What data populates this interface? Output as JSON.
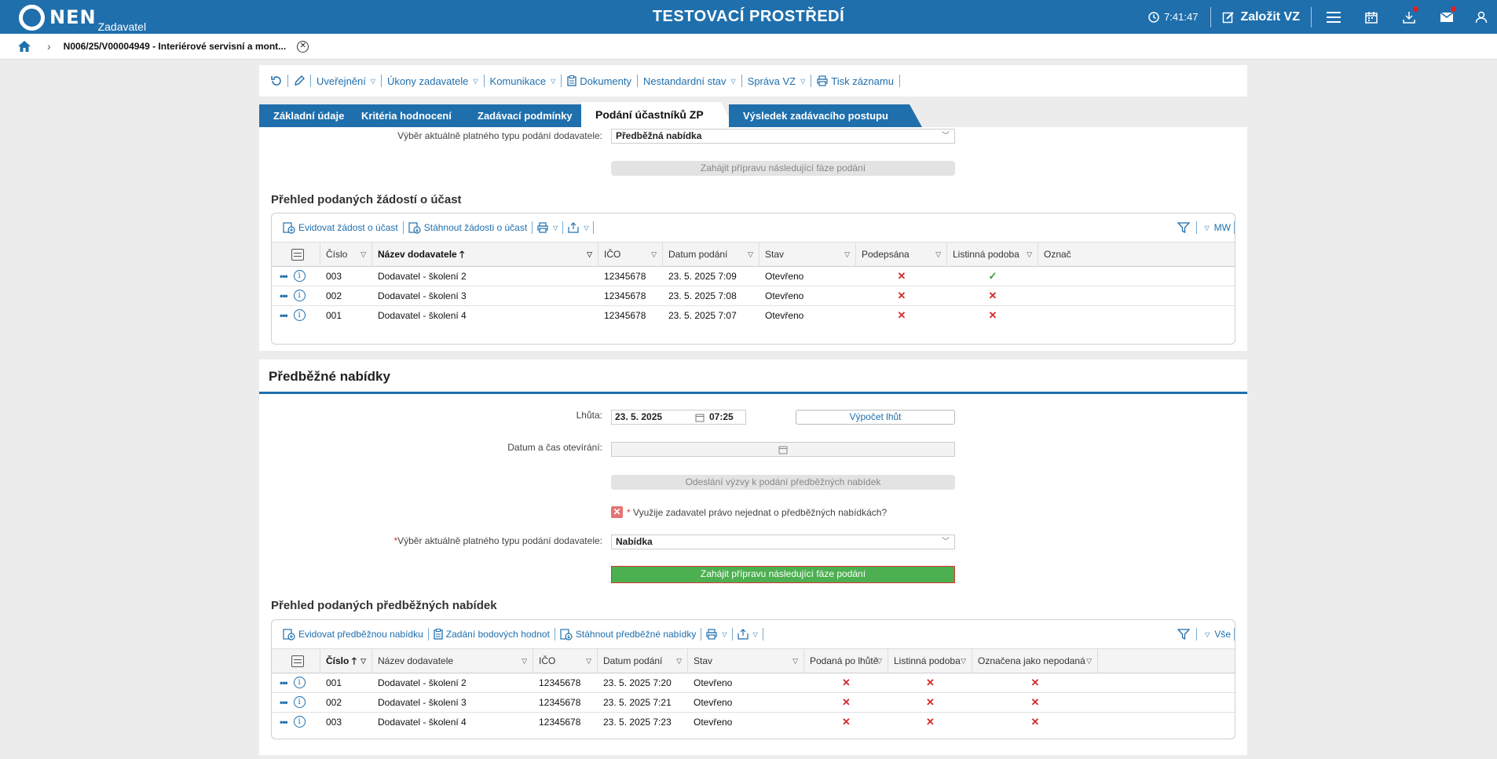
{
  "header": {
    "logo_text": "NEN",
    "logo_sub": "Zadavatel",
    "env_title": "TESTOVACÍ PROSTŘEDÍ",
    "time": "7:41:47",
    "create_label": "Založit VZ"
  },
  "breadcrumb": {
    "item": "N006/25/V00004949 - Interiérové servisní a mont..."
  },
  "toolbar": {
    "publish": "Uveřejnění",
    "actions": "Úkony zadavatele",
    "communication": "Komunikace",
    "documents": "Dokumenty",
    "nonstandard": "Nestandardní stav",
    "admin": "Správa VZ",
    "print": "Tisk záznamu"
  },
  "tabs": [
    {
      "label": "Základní údaje"
    },
    {
      "label": "Kritéria hodnocení"
    },
    {
      "label": "Zadávací podmínky"
    },
    {
      "label": "Podání účastníků ZP"
    },
    {
      "label": "Výsledek zadávacího postupu"
    }
  ],
  "top_section": {
    "type_label": "Výběr aktuálně platného typu podání dodavatele:",
    "type_value": "Předběžná nabídka",
    "start_next_button": "Zahájit přípravu následující fáze podání",
    "grid_title": "Přehled podaných žádostí o účast",
    "grid_actions": {
      "register": "Evidovat žádost o účast",
      "download": "Stáhnout žádosti o účast",
      "right_label": "MW"
    },
    "columns": [
      "Číslo",
      "Název dodavatele",
      "IČO",
      "Datum podání",
      "Stav",
      "Podepsána",
      "Listinná podoba",
      "Označ"
    ],
    "rows": [
      {
        "cislo": "003",
        "nazev": "Dodavatel - školení 2",
        "ico": "12345678",
        "datum": "23. 5. 2025 7:09",
        "stav": "Otevřeno",
        "podepsana": "✕",
        "listinna": "✓"
      },
      {
        "cislo": "002",
        "nazev": "Dodavatel - školení 3",
        "ico": "12345678",
        "datum": "23. 5. 2025 7:08",
        "stav": "Otevřeno",
        "podepsana": "✕",
        "listinna": "✕"
      },
      {
        "cislo": "001",
        "nazev": "Dodavatel - školení 4",
        "ico": "12345678",
        "datum": "23. 5. 2025 7:07",
        "stav": "Otevřeno",
        "podepsana": "✕",
        "listinna": "✕"
      }
    ]
  },
  "prelim_section": {
    "title": "Předběžné nabídky",
    "deadline_label": "Lhůta:",
    "deadline_date": "23. 5. 2025",
    "deadline_time": "07:25",
    "calc_button": "Výpočet lhůt",
    "opening_label": "Datum a čas otevírání:",
    "send_invite_button": "Odeslání výzvy k podání předběžných nabídek",
    "checkbox_label": "Využije zadavatel právo nejednat o předběžných nabídkách?",
    "type_label": "Výběr aktuálně platného typu podání dodavatele:",
    "type_value": "Nabídka",
    "start_next_button": "Zahájit přípravu následující fáze podání",
    "grid_title": "Přehled podaných předběžných nabídek",
    "grid_actions": {
      "register": "Evidovat předběžnou nabídku",
      "points": "Zadání bodových hodnot",
      "download": "Stáhnout předběžné nabídky",
      "right_label": "Vše"
    },
    "columns": [
      "Číslo",
      "Název dodavatele",
      "IČO",
      "Datum podání",
      "Stav",
      "Podaná po lhůtě",
      "Listinná podoba",
      "Označena jako nepodaná"
    ],
    "rows": [
      {
        "cislo": "001",
        "nazev": "Dodavatel - školení 2",
        "ico": "12345678",
        "datum": "23. 5. 2025 7:20",
        "stav": "Otevřeno",
        "po_lhute": "✕",
        "listinna": "✕",
        "nepodana": "✕"
      },
      {
        "cislo": "002",
        "nazev": "Dodavatel - školení 3",
        "ico": "12345678",
        "datum": "23. 5. 2025 7:21",
        "stav": "Otevřeno",
        "po_lhute": "✕",
        "listinna": "✕",
        "nepodana": "✕"
      },
      {
        "cislo": "003",
        "nazev": "Dodavatel - školení 4",
        "ico": "12345678",
        "datum": "23. 5. 2025 7:23",
        "stav": "Otevřeno",
        "po_lhute": "✕",
        "listinna": "✕",
        "nepodana": "✕"
      }
    ]
  },
  "colors": {
    "brand": "#1f6fad",
    "green": "#4caf50",
    "red": "#d42a2a"
  }
}
